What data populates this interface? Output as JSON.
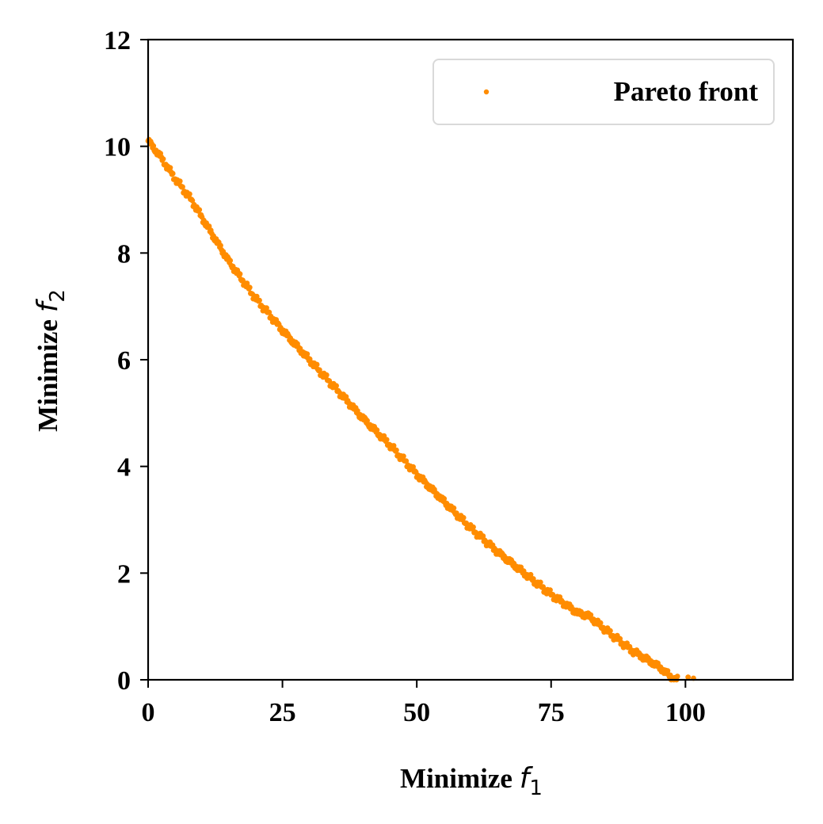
{
  "chart_data": {
    "type": "scatter",
    "title": "",
    "xlabel": {
      "text": "Minimize",
      "var": "f",
      "sub": "1"
    },
    "ylabel": {
      "text": "Minimize",
      "var": "f",
      "sub": "2"
    },
    "xlim": [
      0,
      120
    ],
    "ylim": [
      0,
      12
    ],
    "xticks": [
      0,
      25,
      50,
      75,
      100
    ],
    "yticks": [
      0,
      2,
      4,
      6,
      8,
      10,
      12
    ],
    "grid": false,
    "legend": {
      "position": "top-right",
      "entries": [
        "Pareto front"
      ]
    },
    "colors": {
      "series": "#ff8c00",
      "axes": "#000000",
      "legend_border": "#d9d9d9"
    },
    "series": [
      {
        "name": "Pareto front",
        "curve_knots": [
          [
            0,
            10.1
          ],
          [
            2,
            9.85
          ],
          [
            5,
            9.4
          ],
          [
            8,
            9.0
          ],
          [
            11,
            8.5
          ],
          [
            15,
            7.85
          ],
          [
            20,
            7.15
          ],
          [
            25,
            6.55
          ],
          [
            30,
            6.0
          ],
          [
            35,
            5.45
          ],
          [
            40,
            4.9
          ],
          [
            45,
            4.4
          ],
          [
            50,
            3.85
          ],
          [
            55,
            3.35
          ],
          [
            60,
            2.85
          ],
          [
            65,
            2.4
          ],
          [
            70,
            2.0
          ],
          [
            75,
            1.6
          ],
          [
            80,
            1.25
          ],
          [
            82,
            1.2
          ],
          [
            85,
            0.95
          ],
          [
            90,
            0.55
          ],
          [
            95,
            0.25
          ],
          [
            98,
            0.0
          ]
        ],
        "x_range": [
          0,
          98.5
        ],
        "point_count": 600,
        "extra_points": [
          [
            101.5,
            0.03
          ],
          [
            100.5,
            0.05
          ]
        ]
      }
    ]
  }
}
